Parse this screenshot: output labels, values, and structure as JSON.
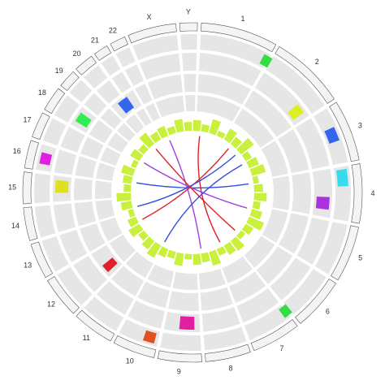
{
  "chart_data": {
    "type": "circos",
    "categories": [
      "1",
      "2",
      "3",
      "4",
      "5",
      "6",
      "7",
      "8",
      "9",
      "10",
      "11",
      "12",
      "13",
      "14",
      "15",
      "16",
      "17",
      "18",
      "19",
      "20",
      "21",
      "22",
      "X",
      "Y"
    ],
    "values": [
      249,
      243,
      198,
      191,
      181,
      171,
      159,
      146,
      141,
      136,
      135,
      133,
      115,
      107,
      102,
      90,
      83,
      80,
      59,
      64,
      47,
      51,
      156,
      57
    ],
    "histogram": {
      "color": "#c8f03c",
      "ylim": [
        0,
        10
      ],
      "values": [
        6,
        4,
        8,
        3,
        7,
        5,
        9,
        4,
        6,
        8,
        3,
        5,
        7,
        4,
        6,
        9,
        5,
        3,
        7,
        6,
        4,
        8,
        5,
        6,
        3,
        7,
        4,
        5,
        8,
        6,
        4,
        7,
        5,
        3,
        6,
        8,
        4,
        5,
        7,
        3,
        6,
        4,
        8,
        5,
        6,
        4,
        7,
        5
      ]
    },
    "links": {
      "source": [
        40,
        700,
        1500,
        2100,
        420,
        2600,
        1150,
        1820
      ],
      "target": [
        1320,
        2420,
        2880,
        330,
        2220,
        920,
        2750,
        520
      ],
      "colors": [
        "#e0202a",
        "#3050e0",
        "#a040e0",
        "#e0202a",
        "#3050e0",
        "#a040e0",
        "#e0202a",
        "#3050e0"
      ]
    },
    "highlights": {
      "start": [
        230,
        430,
        560,
        700,
        800,
        1230,
        1560,
        1690,
        1970,
        2340,
        2430,
        2600,
        2750
      ],
      "end": [
        250,
        470,
        610,
        760,
        850,
        1250,
        1620,
        1730,
        2010,
        2390,
        2470,
        2640,
        2790
      ],
      "ring": [
        0,
        1,
        0,
        0,
        1,
        0,
        1,
        0,
        2,
        1,
        0,
        1,
        2
      ],
      "colors": [
        "#33dd44",
        "#ddee22",
        "#3366ee",
        "#33ddee",
        "#aa33dd",
        "#33dd44",
        "#e020a0",
        "#e05020",
        "#e0202a",
        "#e0e020",
        "#e020e0",
        "#30ee50",
        "#3366ee"
      ]
    }
  }
}
